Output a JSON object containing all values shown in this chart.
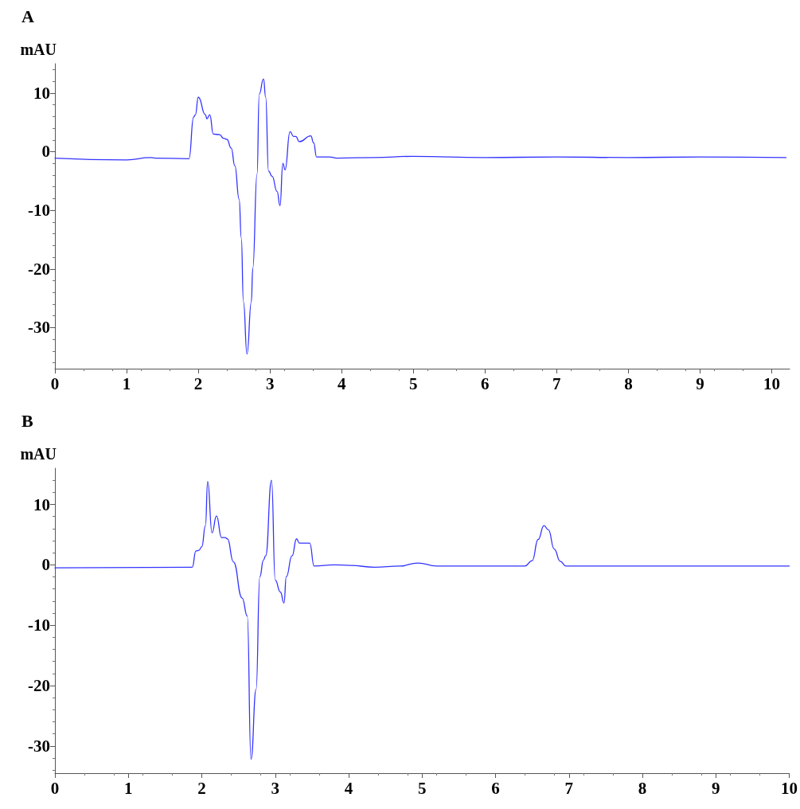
{
  "chart_data": [
    {
      "type": "line",
      "title": "A",
      "ylabel": "mAU",
      "xlim": [
        0,
        10.25
      ],
      "ylim": [
        -37,
        15
      ],
      "xticks": [
        0,
        1,
        2,
        3,
        4,
        5,
        6,
        7,
        8,
        9,
        10
      ],
      "yticks": [
        -30,
        -20,
        -10,
        0,
        10
      ],
      "marker": "none",
      "line_style": "solid",
      "series": [
        {
          "color": "#3333ff",
          "x": [
            0,
            1.0,
            1.33,
            1.4,
            1.87,
            1.935,
            1.96,
            2.0,
            2.1,
            2.12,
            2.16,
            2.21,
            2.3,
            2.35,
            2.4,
            2.46,
            2.51,
            2.57,
            2.6,
            2.63,
            2.68,
            2.74,
            2.76,
            2.82,
            2.85,
            2.91,
            2.94,
            2.98,
            3.03,
            3.1,
            3.14,
            3.18,
            3.21,
            3.28,
            3.33,
            3.36,
            3.41,
            3.57,
            3.61,
            3.65,
            3.83,
            3.94,
            4.44,
            5.0,
            6.0,
            7.0,
            8.0,
            9.0,
            10.2
          ],
          "values": [
            -1.1,
            -1.4,
            -1.0,
            -1.1,
            -1.2,
            5.9,
            6.3,
            9.3,
            6.3,
            5.6,
            6.3,
            3.0,
            2.9,
            2.3,
            2.1,
            0.6,
            -2.4,
            -8.1,
            -14.7,
            -25.6,
            -34.5,
            -25.6,
            -19.9,
            -3.8,
            9.8,
            12.4,
            9.3,
            -3.3,
            -4.2,
            -6.8,
            -9.2,
            -2.0,
            -3.1,
            3.4,
            2.6,
            2.6,
            1.7,
            2.7,
            1.5,
            -0.9,
            -0.9,
            -1.1,
            -1.0,
            -0.8,
            -1.0,
            -0.9,
            -1.0,
            -0.9,
            -1.0
          ]
        }
      ]
    },
    {
      "type": "line",
      "title": "B",
      "ylabel": "mAU",
      "xlim": [
        0,
        10
      ],
      "ylim": [
        -34.5,
        16
      ],
      "xticks": [
        0,
        1,
        2,
        3,
        4,
        5,
        6,
        7,
        8,
        9,
        10
      ],
      "yticks": [
        -30,
        -20,
        -10,
        0,
        10
      ],
      "marker": "none",
      "line_style": "solid",
      "series": [
        {
          "color": "#3333ff",
          "x": [
            0,
            1.87,
            1.92,
            1.96,
            2.0,
            2.05,
            2.08,
            2.14,
            2.2,
            2.27,
            2.32,
            2.35,
            2.43,
            2.55,
            2.62,
            2.67,
            2.74,
            2.79,
            2.84,
            2.87,
            2.95,
            3.0,
            3.07,
            3.12,
            3.15,
            3.23,
            3.29,
            3.33,
            3.47,
            3.53,
            3.8,
            4.03,
            4.35,
            4.7,
            4.94,
            5.2,
            6.4,
            6.5,
            6.58,
            6.66,
            6.72,
            6.8,
            6.88,
            6.96,
            8.0,
            10.0
          ],
          "values": [
            -0.5,
            -0.4,
            2.3,
            2.4,
            3.0,
            6.5,
            13.8,
            5.3,
            8.1,
            4.5,
            4.5,
            4.3,
            0.5,
            -5.5,
            -8.5,
            -32.2,
            -20.6,
            -2.0,
            0.8,
            1.5,
            14.0,
            -2.5,
            -4.5,
            -6.3,
            -2.0,
            1.5,
            4.3,
            3.6,
            3.6,
            -0.2,
            0,
            -0.1,
            -0.4,
            -0.2,
            0.3,
            -0.2,
            -0.2,
            0.7,
            4.2,
            6.5,
            5.8,
            2.6,
            0.6,
            -0.2,
            -0.2,
            -0.2
          ]
        }
      ]
    }
  ]
}
